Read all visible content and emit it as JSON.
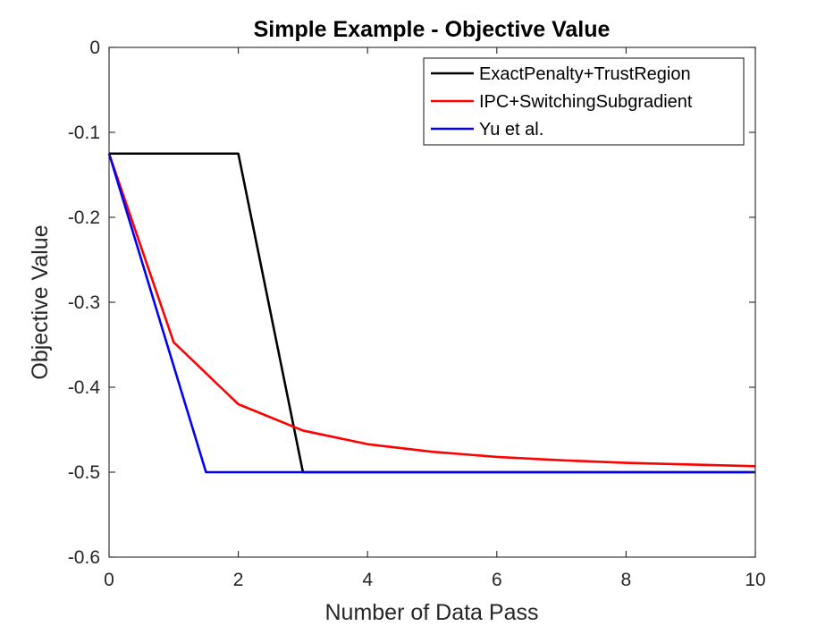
{
  "chart_data": {
    "type": "line",
    "title": "Simple Example - Objective Value",
    "xlabel": "Number of Data Pass",
    "ylabel": "Objective Value",
    "xlim": [
      0,
      10
    ],
    "ylim": [
      -0.6,
      0
    ],
    "xticks": [
      0,
      2,
      4,
      6,
      8,
      10
    ],
    "xtick_labels": [
      "0",
      "2",
      "4",
      "6",
      "8",
      "10"
    ],
    "yticks": [
      0,
      -0.1,
      -0.2,
      -0.3,
      -0.4,
      -0.5,
      -0.6
    ],
    "ytick_labels": [
      "0",
      "-0.1",
      "-0.2",
      "-0.3",
      "-0.4",
      "-0.5",
      "-0.6"
    ],
    "grid": false,
    "legend_position": "top-right",
    "series": [
      {
        "name": "ExactPenalty+TrustRegion",
        "color": "#000000",
        "x": [
          0,
          2,
          3,
          10
        ],
        "y": [
          -0.125,
          -0.125,
          -0.5,
          -0.5
        ]
      },
      {
        "name": "IPC+SwitchingSubgradient",
        "color": "#ff0000",
        "x": [
          0,
          1,
          2,
          3,
          4,
          5,
          6,
          7,
          8,
          9,
          10
        ],
        "y": [
          -0.125,
          -0.347,
          -0.42,
          -0.451,
          -0.467,
          -0.476,
          -0.482,
          -0.486,
          -0.489,
          -0.491,
          -0.493
        ]
      },
      {
        "name": "Yu et al.",
        "color": "#0000ff",
        "x": [
          0,
          1.5,
          10
        ],
        "y": [
          -0.125,
          -0.5,
          -0.5
        ]
      }
    ]
  }
}
